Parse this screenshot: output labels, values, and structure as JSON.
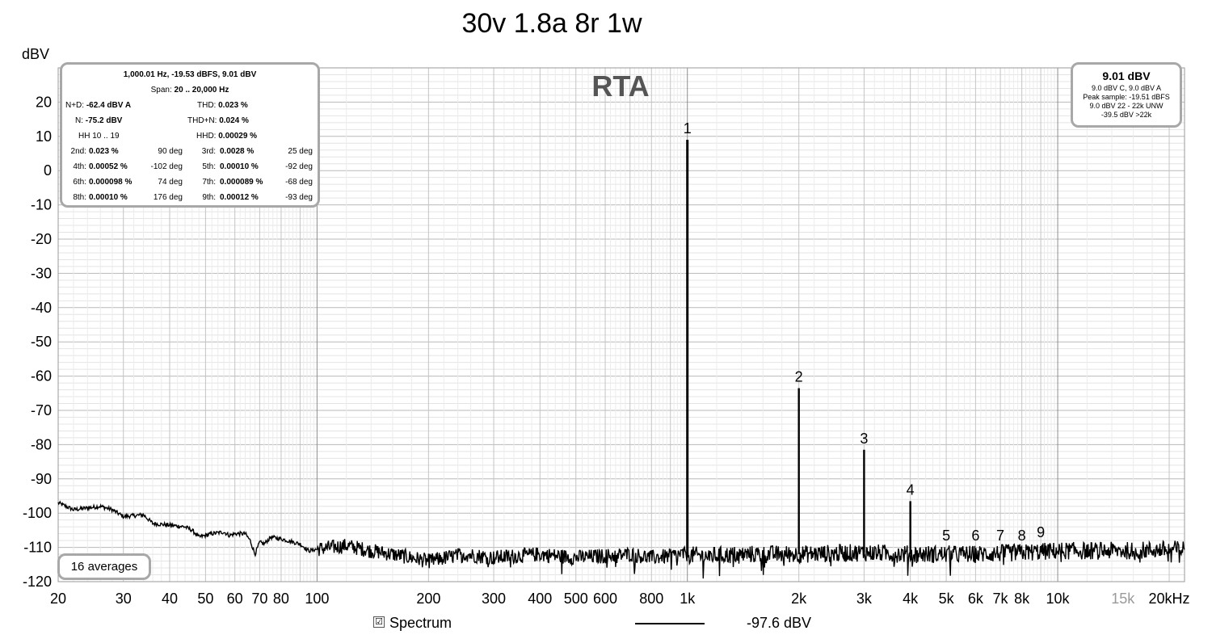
{
  "title": "30v 1.8a 8r 1w",
  "chart_title": "RTA",
  "chart_data": {
    "type": "line",
    "ylabel": "dBV",
    "xlabel": "",
    "x_scale": "log",
    "xlim": [
      20,
      22000
    ],
    "ylim": [
      -120,
      30
    ],
    "grid": true,
    "x_tick_labels": [
      {
        "v": 20,
        "t": "20"
      },
      {
        "v": 30,
        "t": "30"
      },
      {
        "v": 40,
        "t": "40"
      },
      {
        "v": 50,
        "t": "50"
      },
      {
        "v": 60,
        "t": "60"
      },
      {
        "v": 70,
        "t": "70"
      },
      {
        "v": 80,
        "t": "80"
      },
      {
        "v": 100,
        "t": "100"
      },
      {
        "v": 200,
        "t": "200"
      },
      {
        "v": 300,
        "t": "300"
      },
      {
        "v": 400,
        "t": "400"
      },
      {
        "v": 500,
        "t": "500"
      },
      {
        "v": 600,
        "t": "600"
      },
      {
        "v": 800,
        "t": "800"
      },
      {
        "v": 1000,
        "t": "1k"
      },
      {
        "v": 2000,
        "t": "2k"
      },
      {
        "v": 3000,
        "t": "3k"
      },
      {
        "v": 4000,
        "t": "4k"
      },
      {
        "v": 5000,
        "t": "5k"
      },
      {
        "v": 6000,
        "t": "6k"
      },
      {
        "v": 7000,
        "t": "7k"
      },
      {
        "v": 8000,
        "t": "8k"
      },
      {
        "v": 10000,
        "t": "10k"
      },
      {
        "v": 15000,
        "t": "15k",
        "dim": true
      },
      {
        "v": 20000,
        "t": "20kHz"
      }
    ],
    "y_ticks": [
      20,
      10,
      0,
      -10,
      -20,
      -30,
      -40,
      -50,
      -60,
      -70,
      -80,
      -90,
      -100,
      -110,
      -120
    ],
    "noise_floor": [
      [
        20,
        -97
      ],
      [
        22,
        -99
      ],
      [
        26,
        -98
      ],
      [
        28,
        -99
      ],
      [
        30,
        -101
      ],
      [
        34,
        -100.5
      ],
      [
        36,
        -103
      ],
      [
        40,
        -103.5
      ],
      [
        44,
        -104
      ],
      [
        46,
        -105
      ],
      [
        48,
        -107
      ],
      [
        52,
        -106
      ],
      [
        56,
        -105.5
      ],
      [
        58,
        -106.5
      ],
      [
        60,
        -106
      ],
      [
        64,
        -106
      ],
      [
        66,
        -108
      ],
      [
        68,
        -112
      ],
      [
        70,
        -108.5
      ],
      [
        72,
        -109
      ],
      [
        75,
        -107
      ],
      [
        80,
        -107.5
      ],
      [
        90,
        -109
      ],
      [
        95,
        -111
      ],
      [
        100,
        -110.5
      ],
      [
        120,
        -109.5
      ],
      [
        140,
        -111
      ],
      [
        160,
        -112
      ],
      [
        180,
        -113
      ],
      [
        200,
        -114
      ],
      [
        250,
        -112
      ],
      [
        300,
        -113
      ],
      [
        400,
        -112
      ],
      [
        500,
        -113
      ],
      [
        600,
        -112.5
      ],
      [
        700,
        -112
      ],
      [
        800,
        -113
      ],
      [
        900,
        -112.5
      ],
      [
        960,
        -112
      ],
      [
        1100,
        -112.5
      ],
      [
        1500,
        -112
      ],
      [
        2000,
        -112
      ],
      [
        3000,
        -111.5
      ],
      [
        4000,
        -112
      ],
      [
        6000,
        -112
      ],
      [
        8000,
        -111.5
      ],
      [
        10000,
        -111
      ],
      [
        15000,
        -111
      ],
      [
        22000,
        -110.5
      ]
    ],
    "harmonics": [
      {
        "label": "1",
        "freq": 1000,
        "level": 9.0
      },
      {
        "label": "2",
        "freq": 2000,
        "level": -63.5
      },
      {
        "label": "3",
        "freq": 3000,
        "level": -81.5
      },
      {
        "label": "4",
        "freq": 4000,
        "level": -96.5
      },
      {
        "label": "5",
        "freq": 5000,
        "level": -108.5
      },
      {
        "label": "6",
        "freq": 6000,
        "level": -108.5
      },
      {
        "label": "7",
        "freq": 7000,
        "level": -108.5
      },
      {
        "label": "8",
        "freq": 8000,
        "level": -108.5
      },
      {
        "label": "9",
        "freq": 9000,
        "level": -107.5
      }
    ],
    "series": [
      {
        "name": "Spectrum",
        "color": "#000000"
      }
    ]
  },
  "stats": {
    "header": "1,000.01 Hz, -19.53 dBFS, 9.01 dBV",
    "span_label": "Span:",
    "span_value": "20 .. 20,000 Hz",
    "nd_label": "N+D:",
    "nd_value": "-62.4 dBV A",
    "thd_label": "THD:",
    "thd_value": "0.023 %",
    "n_label": "N:",
    "n_value": "-75.2 dBV",
    "thdn_label": "THD+N:",
    "thdn_value": "0.024 %",
    "hh_label": "HH 10 .. 19",
    "hhd_label": "HHD:",
    "hhd_value": "0.00029 %",
    "harm": [
      {
        "l1": "2nd:",
        "v1": "0.023 %",
        "d1": "90 deg",
        "l2": "3rd:",
        "v2": "0.0028 %",
        "d2": "25 deg"
      },
      {
        "l1": "4th:",
        "v1": "0.00052 %",
        "d1": "-102 deg",
        "l2": "5th:",
        "v2": "0.00010 %",
        "d2": "-92 deg"
      },
      {
        "l1": "6th:",
        "v1": "0.000098 %",
        "d1": "74 deg",
        "l2": "7th:",
        "v2": "0.000089 %",
        "d2": "-68 deg"
      },
      {
        "l1": "8th:",
        "v1": "0.00010 %",
        "d1": "176 deg",
        "l2": "9th:",
        "v2": "0.00012 %",
        "d2": "-93 deg"
      }
    ]
  },
  "level": {
    "main": "9.01 dBV",
    "lines": [
      "9.0 dBV C, 9.0 dBV A",
      "Peak sample: -19.51 dBFS",
      "9.0 dBV 22 - 22k UNW",
      "-39.5 dBV >22k"
    ]
  },
  "averages": "16 averages",
  "legend": {
    "checkbox": "☑",
    "label": "Spectrum",
    "value": "-97.6 dBV"
  }
}
